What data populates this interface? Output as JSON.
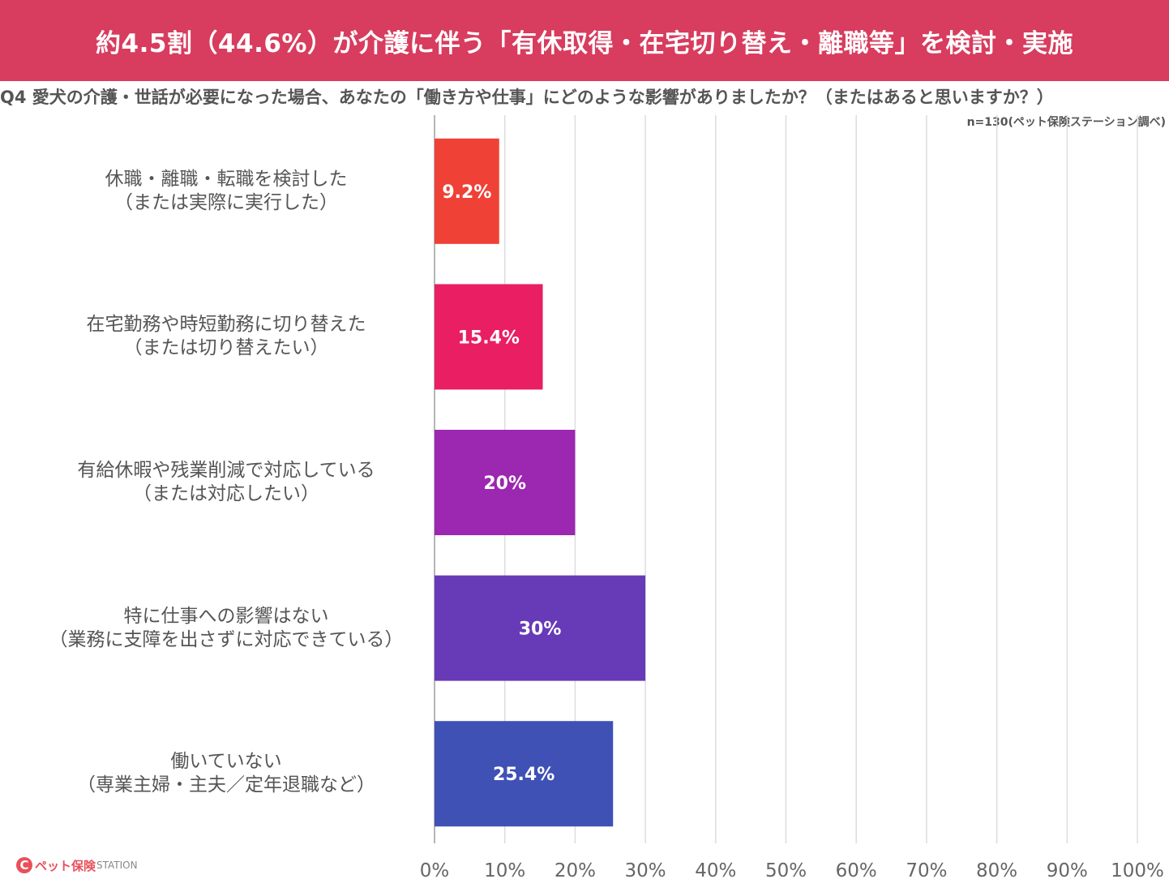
{
  "banner": {
    "text": "約4.5割（44.6%）が介護に伴う「有休取得・在宅切り替え・離職等」を検討・実施",
    "color": "#d83c5e"
  },
  "question": "Q4 愛犬の介護・世話が必要になった場合、あなたの「働き方や仕事」にどのような影響がありましたか？（またはあると思いますか？）",
  "source": "n=130(ペット保険ステーション調べ)",
  "logo": {
    "mark": "C",
    "name_jp": "ペット保険",
    "name_en": "STATION"
  },
  "chart_data": {
    "type": "bar",
    "orientation": "horizontal",
    "categories": [
      [
        "休職・離職・転職を検討した",
        "（または実際に実行した）"
      ],
      [
        "在宅勤務や時短勤務に切り替えた",
        "（または切り替えたい）"
      ],
      [
        "有給休暇や残業削減で対応している",
        "（または対応したい）"
      ],
      [
        "特に仕事への影響はない",
        "（業務に支障を出さずに対応できている）"
      ],
      [
        "働いていない",
        "（専業主婦・主夫／定年退職など）"
      ]
    ],
    "values": [
      9.2,
      15.4,
      20,
      30,
      25.4
    ],
    "value_labels": [
      "9.2%",
      "15.4%",
      "20%",
      "30%",
      "25.4%"
    ],
    "colors": [
      "#ef4136",
      "#e91e63",
      "#9c27b0",
      "#673ab7",
      "#3f51b5"
    ],
    "xlim": [
      0,
      100
    ],
    "xticks": [
      "0%",
      "10%",
      "20%",
      "30%",
      "40%",
      "50%",
      "60%",
      "70%",
      "80%",
      "90%",
      "100%"
    ],
    "grid": true
  }
}
